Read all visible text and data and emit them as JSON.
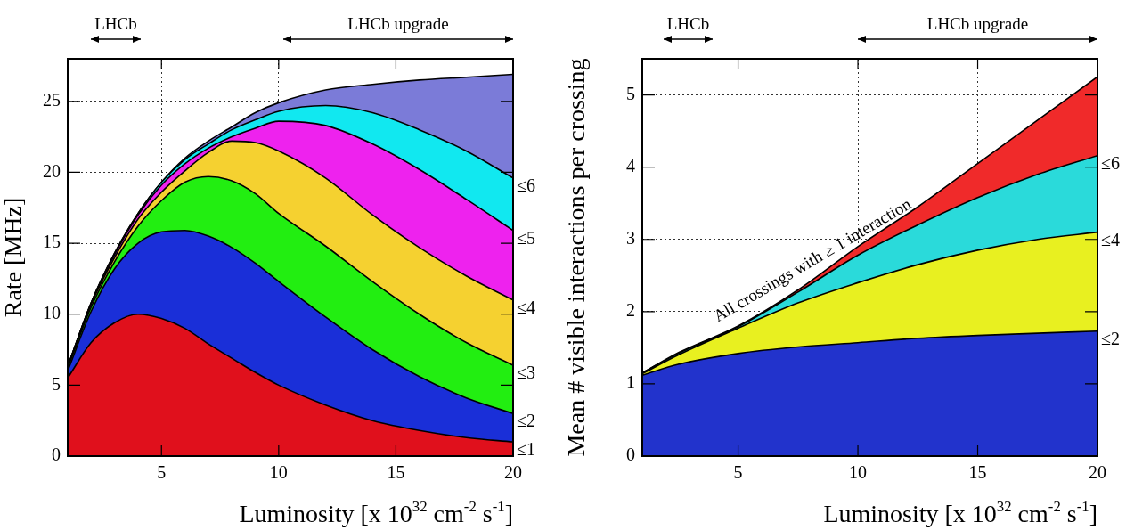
{
  "chart_data": [
    {
      "type": "area",
      "stacked": true,
      "xlabel": "Luminosity [x 10$^{32}$ cm$^{-2}$ s$^{-1}$]",
      "ylabel": "Rate [MHz]",
      "x": [
        1,
        2,
        3,
        4,
        5,
        6,
        7,
        8,
        9,
        10,
        12,
        14,
        16,
        18,
        20
      ],
      "xlim": [
        1,
        20
      ],
      "xticks": [
        5,
        10,
        15,
        20
      ],
      "ylim": [
        0,
        28
      ],
      "yticks": [
        0,
        5,
        10,
        15,
        20,
        25
      ],
      "grid": true,
      "marker": "none",
      "line_style": "solid",
      "series": [
        {
          "name": "≤1",
          "color": "#e0101c",
          "values": [
            5.5,
            8.0,
            9.4,
            10.0,
            9.7,
            9.0,
            7.9,
            6.9,
            5.9,
            5.0,
            3.6,
            2.5,
            1.8,
            1.3,
            1.0
          ]
        },
        {
          "name": "≤2",
          "color": "#1a2fd8",
          "values": [
            0.5,
            2.2,
            3.8,
            5.0,
            6.1,
            6.9,
            7.6,
            7.8,
            7.7,
            7.3,
            6.2,
            5.0,
            3.8,
            2.8,
            2.0
          ]
        },
        {
          "name": "≤3",
          "color": "#22ee11",
          "values": [
            0.2,
            0.3,
            0.5,
            1.2,
            2.2,
            3.4,
            4.2,
            4.7,
            4.9,
            4.8,
            5.0,
            4.8,
            4.4,
            3.9,
            3.4
          ]
        },
        {
          "name": "≤4",
          "color": "#f5d130",
          "values": [
            0.1,
            0.2,
            0.3,
            0.5,
            0.6,
            0.8,
            1.7,
            2.8,
            3.6,
            4.4,
            4.8,
            4.7,
            4.7,
            4.7,
            4.6
          ]
        },
        {
          "name": "≤5",
          "color": "#ee22ee",
          "values": [
            0,
            0.1,
            0.2,
            0.3,
            0.5,
            0.5,
            0.3,
            0.3,
            1.0,
            2.1,
            3.7,
            5.0,
            5.5,
            5.4,
            4.9
          ]
        },
        {
          "name": "≤6",
          "color": "#11e8f0",
          "values": [
            0,
            0,
            0.1,
            0.1,
            0.2,
            0.3,
            0.3,
            0.5,
            0.6,
            0.7,
            1.4,
            2.2,
            2.8,
            3.4,
            3.7
          ]
        },
        {
          "color": "#7b7bd8",
          "values": [
            0,
            0,
            0,
            0,
            0,
            0.1,
            0.2,
            0.2,
            0.5,
            0.6,
            1.1,
            2.0,
            3.5,
            5.2,
            7.3
          ]
        }
      ],
      "legend": "right",
      "annotations": [
        "LHCb",
        "LHCb upgrade"
      ]
    },
    {
      "type": "area",
      "stacked": true,
      "xlabel": "Luminosity [x 10$^{32}$ cm$^{-2}$ s$^{-1}$]",
      "ylabel": "Mean # visible interactions per crossing",
      "x": [
        1,
        2.5,
        5,
        7.5,
        10,
        12.5,
        15,
        17.5,
        20
      ],
      "xlim": [
        1,
        20
      ],
      "xticks": [
        5,
        10,
        15,
        20
      ],
      "ylim": [
        0,
        5.5
      ],
      "yticks": [
        0,
        1,
        2,
        3,
        4,
        5
      ],
      "grid": true,
      "marker": "none",
      "line_style": "solid",
      "series": [
        {
          "name": "≤2",
          "color": "#2233cc",
          "values": [
            1.12,
            1.27,
            1.42,
            1.51,
            1.57,
            1.63,
            1.67,
            1.7,
            1.73
          ]
        },
        {
          "name": "≤4",
          "color": "#e8f020",
          "values": [
            0.02,
            0.13,
            0.35,
            0.61,
            0.83,
            1.02,
            1.18,
            1.3,
            1.37
          ]
        },
        {
          "name": "≤6",
          "color": "#2adada",
          "values": [
            0.01,
            0.02,
            0.02,
            0.15,
            0.38,
            0.55,
            0.73,
            0.9,
            1.06
          ]
        },
        {
          "color": "#f02a2a",
          "values": [
            0,
            0.01,
            0.01,
            0.03,
            0.12,
            0.25,
            0.47,
            0.75,
            1.09
          ]
        }
      ],
      "legend": "right",
      "annotations": [
        "LHCb",
        "LHCb upgrade",
        "All crossings with ≥ 1 interaction"
      ]
    }
  ]
}
